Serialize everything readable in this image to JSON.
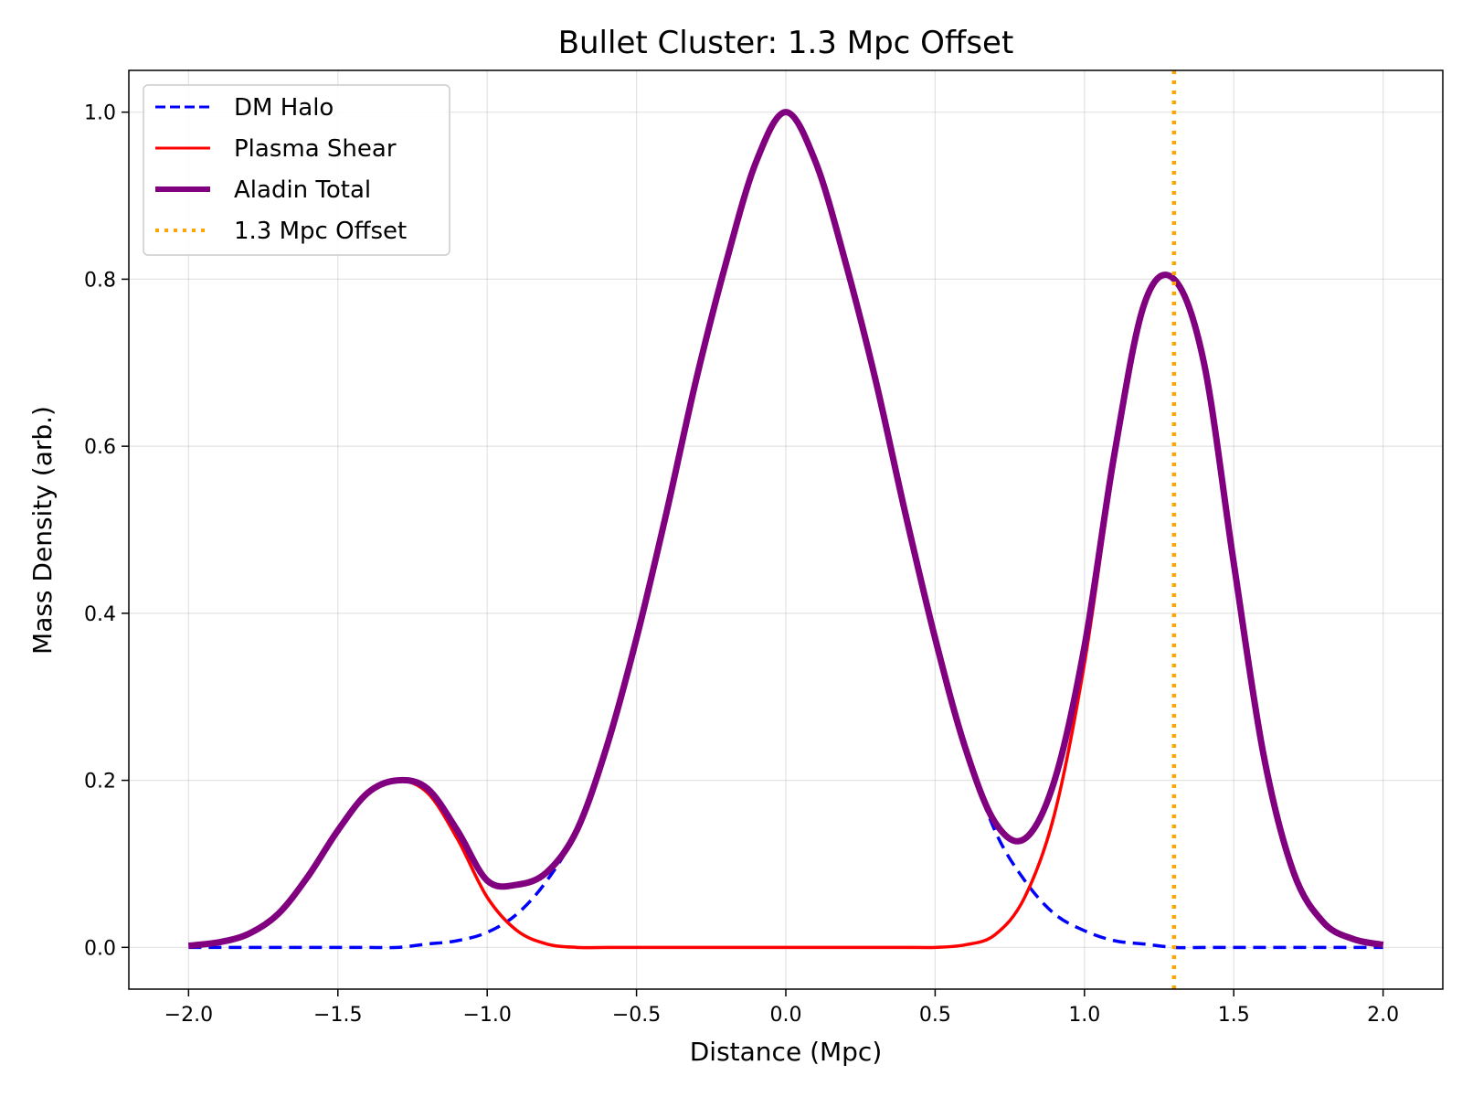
{
  "chart_data": {
    "type": "line",
    "title": "Bullet Cluster: 1.3 Mpc Offset",
    "xlabel": "Distance (Mpc)",
    "ylabel": "Mass Density (arb.)",
    "xlim": [
      -2.2,
      2.2
    ],
    "ylim": [
      -0.05,
      1.05
    ],
    "xticks": [
      -2.0,
      -1.5,
      -1.0,
      -0.5,
      0.0,
      0.5,
      1.0,
      1.5,
      2.0
    ],
    "xtick_labels": [
      "−2.0",
      "−1.5",
      "−1.0",
      "−0.5",
      "0.0",
      "0.5",
      "1.0",
      "1.5",
      "2.0"
    ],
    "yticks": [
      0.0,
      0.2,
      0.4,
      0.6,
      0.8,
      1.0
    ],
    "ytick_labels": [
      "0.0",
      "0.2",
      "0.4",
      "0.6",
      "0.8",
      "1.0"
    ],
    "grid": true,
    "legend_position": "top-left",
    "x": [
      -2.0,
      -1.9,
      -1.8,
      -1.7,
      -1.6,
      -1.5,
      -1.4,
      -1.3,
      -1.2,
      -1.1,
      -1.0,
      -0.9,
      -0.8,
      -0.7,
      -0.6,
      -0.5,
      -0.4,
      -0.3,
      -0.2,
      -0.1,
      0.0,
      0.1,
      0.2,
      0.3,
      0.4,
      0.5,
      0.6,
      0.7,
      0.8,
      0.9,
      1.0,
      1.1,
      1.2,
      1.3,
      1.4,
      1.5,
      1.6,
      1.7,
      1.8,
      1.9,
      2.0
    ],
    "series": [
      {
        "name": "DM Halo",
        "color": "#0000ff",
        "style": "dashed",
        "values": [
          0.0,
          0.0,
          0.0,
          0.0,
          0.0,
          0.0,
          0.0,
          0.0,
          0.004,
          0.008,
          0.018,
          0.04,
          0.08,
          0.14,
          0.24,
          0.37,
          0.52,
          0.68,
          0.82,
          0.94,
          1.0,
          0.94,
          0.82,
          0.68,
          0.52,
          0.37,
          0.24,
          0.14,
          0.08,
          0.04,
          0.02,
          0.008,
          0.004,
          0.0,
          0.0,
          0.0,
          0.0,
          0.0,
          0.0,
          0.0,
          0.0
        ]
      },
      {
        "name": "Plasma Shear",
        "color": "#ff0000",
        "style": "solid",
        "values": [
          0.002,
          0.006,
          0.016,
          0.04,
          0.085,
          0.14,
          0.185,
          0.2,
          0.185,
          0.13,
          0.06,
          0.02,
          0.004,
          0.0,
          0.0,
          0.0,
          0.0,
          0.0,
          0.0,
          0.0,
          0.0,
          0.0,
          0.0,
          0.0,
          0.0,
          0.0,
          0.003,
          0.015,
          0.06,
          0.16,
          0.34,
          0.58,
          0.77,
          0.8,
          0.7,
          0.46,
          0.23,
          0.09,
          0.03,
          0.01,
          0.003
        ]
      },
      {
        "name": "Aladin Total",
        "color": "#800080",
        "style": "solid-thick",
        "values": [
          0.002,
          0.006,
          0.016,
          0.04,
          0.085,
          0.14,
          0.185,
          0.2,
          0.19,
          0.14,
          0.08,
          0.075,
          0.09,
          0.14,
          0.24,
          0.37,
          0.52,
          0.68,
          0.82,
          0.94,
          1.0,
          0.94,
          0.82,
          0.68,
          0.52,
          0.37,
          0.24,
          0.15,
          0.13,
          0.2,
          0.36,
          0.59,
          0.77,
          0.8,
          0.7,
          0.46,
          0.23,
          0.09,
          0.03,
          0.01,
          0.003
        ]
      }
    ],
    "vline": {
      "name": "1.3 Mpc Offset",
      "x": 1.3,
      "color": "#ffa500",
      "style": "dotted"
    }
  }
}
